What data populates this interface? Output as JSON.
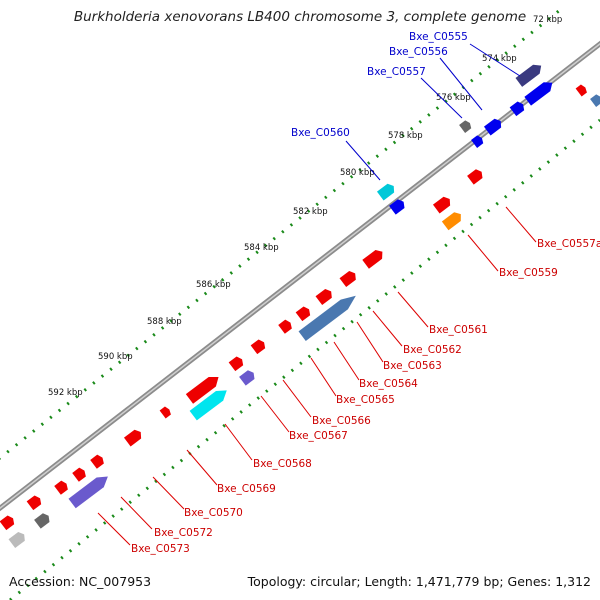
{
  "title": "Burkholderia xenovorans LB400 chromosome 3, complete genome",
  "footer": {
    "accession": "Accession: NC_007953",
    "summary": "Topology: circular; Length: 1,471,779 bp; Genes: 1,312"
  },
  "kbp_ticks": [
    "72 kbp",
    "574 kbp",
    "576 kbp",
    "578 kbp",
    "580 kbp",
    "582 kbp",
    "584 kbp",
    "586 kbp",
    "588 kbp",
    "590 kbp",
    "592 kbp"
  ],
  "gene_labels": [
    {
      "text": "Bxe_C0555",
      "color": "#0000cc"
    },
    {
      "text": "Bxe_C0556",
      "color": "#0000cc"
    },
    {
      "text": "Bxe_C0557",
      "color": "#0000cc"
    },
    {
      "text": "Bxe_C0560",
      "color": "#0000cc"
    },
    {
      "text": "Bxe_C0557a",
      "color": "#cc0000"
    },
    {
      "text": "Bxe_C0559",
      "color": "#cc0000"
    },
    {
      "text": "Bxe_C0561",
      "color": "#cc0000"
    },
    {
      "text": "Bxe_C0562",
      "color": "#cc0000"
    },
    {
      "text": "Bxe_C0563",
      "color": "#cc0000"
    },
    {
      "text": "Bxe_C0564",
      "color": "#cc0000"
    },
    {
      "text": "Bxe_C0565",
      "color": "#cc0000"
    },
    {
      "text": "Bxe_C0566",
      "color": "#cc0000"
    },
    {
      "text": "Bxe_C0567",
      "color": "#cc0000"
    },
    {
      "text": "Bxe_C0568",
      "color": "#cc0000"
    },
    {
      "text": "Bxe_C0569",
      "color": "#cc0000"
    },
    {
      "text": "Bxe_C0570",
      "color": "#cc0000"
    },
    {
      "text": "Bxe_C0572",
      "color": "#cc0000"
    },
    {
      "text": "Bxe_C0573",
      "color": "#cc0000"
    }
  ],
  "colors": {
    "backbone": "#8c8c8c",
    "tick_green": "#1a8a1a",
    "red_gene": "#ee0000",
    "blue_gene": "#0000ee",
    "navy_gene": "#3a3a80",
    "cyan_gene": "#00c8d8",
    "orange_gene": "#ff8c00",
    "steel_gene": "#4a78b0",
    "purple_gene": "#6a5acd",
    "gray_gene": "#777777"
  }
}
